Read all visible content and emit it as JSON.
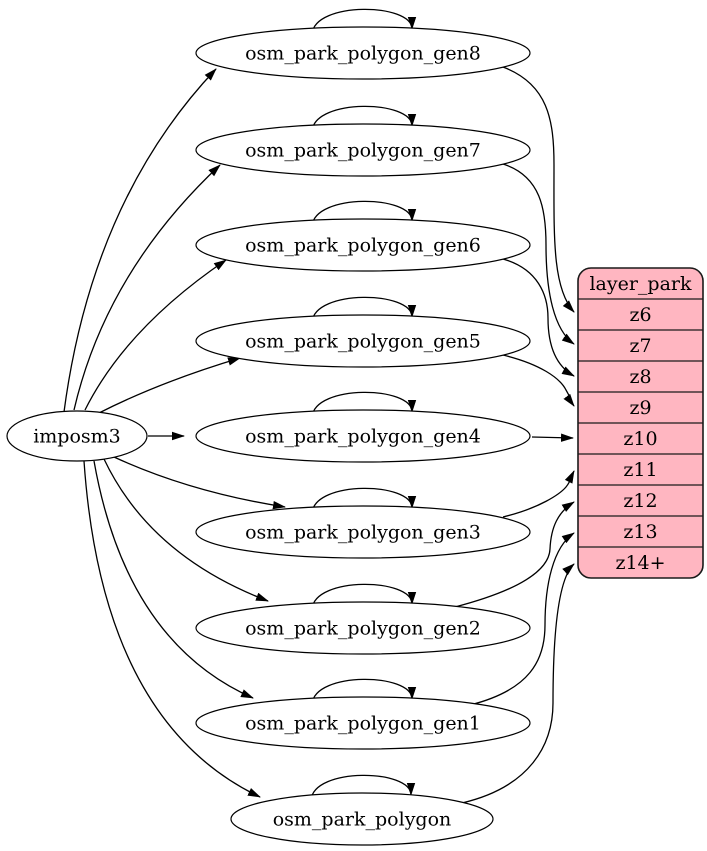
{
  "diagram": {
    "source": {
      "label": "imposm3"
    },
    "tables": [
      {
        "label": "osm_park_polygon_gen8",
        "self_loop": true,
        "target_row": "z6"
      },
      {
        "label": "osm_park_polygon_gen7",
        "self_loop": true,
        "target_row": "z7"
      },
      {
        "label": "osm_park_polygon_gen6",
        "self_loop": true,
        "target_row": "z8"
      },
      {
        "label": "osm_park_polygon_gen5",
        "self_loop": true,
        "target_row": "z9"
      },
      {
        "label": "osm_park_polygon_gen4",
        "self_loop": true,
        "target_row": "z10"
      },
      {
        "label": "osm_park_polygon_gen3",
        "self_loop": true,
        "target_row": "z11"
      },
      {
        "label": "osm_park_polygon_gen2",
        "self_loop": true,
        "target_row": "z12"
      },
      {
        "label": "osm_park_polygon_gen1",
        "self_loop": true,
        "target_row": "z13"
      },
      {
        "label": "osm_park_polygon",
        "self_loop": true,
        "target_row": "z14+"
      }
    ],
    "layer_table": {
      "title": "layer_park",
      "rows": [
        "z6",
        "z7",
        "z8",
        "z9",
        "z10",
        "z11",
        "z12",
        "z13",
        "z14+"
      ]
    },
    "colors": {
      "layer_fill": "#ffb6c1",
      "layer_stroke": "#1a1a1a",
      "node_fill": "#ffffff",
      "edge_stroke": "#000000",
      "text": "#000000"
    }
  }
}
